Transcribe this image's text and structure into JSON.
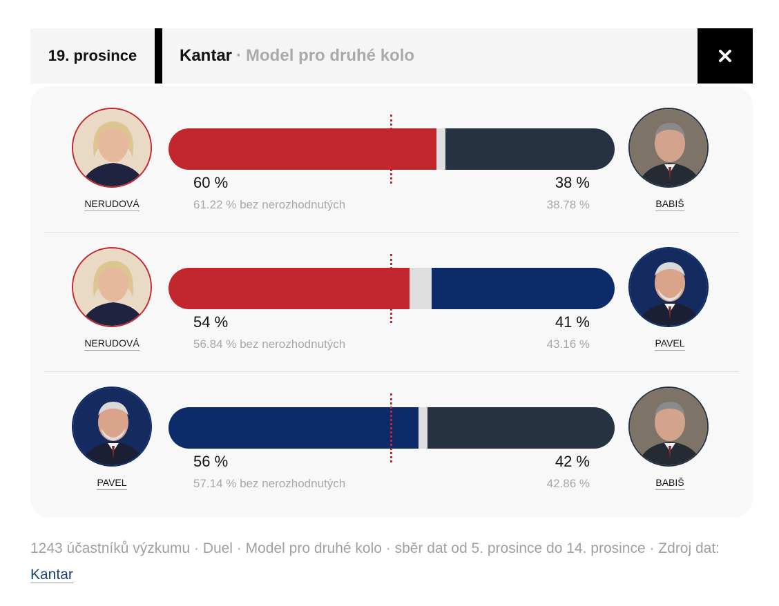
{
  "header": {
    "date": "19. prosince",
    "source": "Kantar",
    "separator": "·",
    "subtitle": "Model pro druhé kolo",
    "close_icon": "close-icon"
  },
  "colors": {
    "nerudova": "#c1272d",
    "babis": "#263242",
    "pavel": "#0c2b68",
    "undecided": "#dedede",
    "midline": "#c4282f"
  },
  "chart_data": {
    "type": "bar",
    "stacked": true,
    "orientation": "horizontal",
    "title": "Model pro druhé kolo",
    "duels": [
      {
        "left": {
          "name": "NERUDOVÁ",
          "value": 60,
          "label": "60 %",
          "sub": "61.22 % bez nerozhodnutých",
          "color": "#c1272d"
        },
        "right": {
          "name": "BABIŠ",
          "value": 38,
          "label": "38 %",
          "sub": "38.78 %",
          "color": "#263242"
        }
      },
      {
        "left": {
          "name": "NERUDOVÁ",
          "value": 54,
          "label": "54 %",
          "sub": "56.84 % bez nerozhodnutých",
          "color": "#c1272d"
        },
        "right": {
          "name": "PAVEL",
          "value": 41,
          "label": "41 %",
          "sub": "43.16 %",
          "color": "#0c2b68"
        }
      },
      {
        "left": {
          "name": "PAVEL",
          "value": 56,
          "label": "56 %",
          "sub": "57.14 % bez nerozhodnutých",
          "color": "#0c2b68"
        },
        "right": {
          "name": "BABIŠ",
          "value": 42,
          "label": "42 %",
          "sub": "42.86 %",
          "color": "#263242"
        }
      }
    ],
    "xlim": [
      0,
      100
    ],
    "reference_line": 50
  },
  "footer": {
    "text": "1243 účastníků výzkumu · Duel · Model pro druhé kolo · sběr dat od 5. prosince do 14. prosince · Zdroj dat: ",
    "link": "Kantar"
  }
}
